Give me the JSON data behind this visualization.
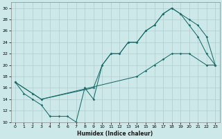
{
  "xlabel": "Humidex (Indice chaleur)",
  "bg_color": "#cde8e8",
  "grid_color": "#b0cccc",
  "line_color": "#1a6b6b",
  "xlim": [
    -0.5,
    23.5
  ],
  "ylim": [
    10,
    31
  ],
  "xticks": [
    0,
    1,
    2,
    3,
    4,
    5,
    6,
    7,
    8,
    9,
    10,
    11,
    12,
    13,
    14,
    15,
    16,
    17,
    18,
    19,
    20,
    21,
    22,
    23
  ],
  "yticks": [
    10,
    12,
    14,
    16,
    18,
    20,
    22,
    24,
    26,
    28,
    30
  ],
  "line1_x": [
    0,
    1,
    2,
    3,
    4,
    5,
    6,
    7,
    8,
    9,
    10,
    11,
    12,
    13,
    14,
    15,
    16,
    17,
    18,
    19,
    20,
    21,
    22,
    23
  ],
  "line1_y": [
    17,
    15,
    14,
    13,
    11,
    11,
    11,
    10,
    16,
    14,
    20,
    22,
    22,
    24,
    24,
    26,
    27,
    29,
    30,
    29,
    27,
    25,
    22,
    20
  ],
  "line2_x": [
    0,
    2,
    3,
    9,
    10,
    11,
    12,
    13,
    14,
    15,
    16,
    17,
    18,
    19,
    20,
    21,
    22,
    23
  ],
  "line2_y": [
    17,
    15,
    14,
    16,
    20,
    22,
    22,
    24,
    24,
    26,
    27,
    29,
    30,
    29,
    28,
    27,
    25,
    20
  ],
  "line3_x": [
    0,
    2,
    3,
    14,
    15,
    16,
    17,
    18,
    19,
    20,
    22,
    23
  ],
  "line3_y": [
    17,
    15,
    14,
    18,
    19,
    20,
    21,
    22,
    22,
    22,
    20,
    20
  ]
}
